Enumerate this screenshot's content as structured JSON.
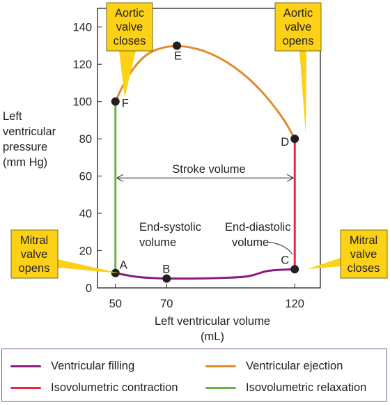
{
  "chart_data": {
    "type": "pressure-volume loop",
    "xlabel_line1": "Left ventricular volume",
    "xlabel_line2": "(mL)",
    "ylabel_lines": [
      "Left",
      "ventricular",
      "pressure",
      "(mm Hg)"
    ],
    "xlim": [
      43,
      130
    ],
    "ylim": [
      0,
      150
    ],
    "x_ticks": [
      50,
      70,
      120
    ],
    "y_ticks": [
      0,
      20,
      40,
      60,
      80,
      100,
      120,
      140
    ],
    "points": [
      {
        "label": "A",
        "x": 50,
        "y": 8
      },
      {
        "label": "B",
        "x": 70,
        "y": 5
      },
      {
        "label": "C",
        "x": 120,
        "y": 10
      },
      {
        "label": "D",
        "x": 120,
        "y": 80
      },
      {
        "label": "E",
        "x": 74,
        "y": 130
      },
      {
        "label": "F",
        "x": 50,
        "y": 100
      }
    ],
    "series": [
      {
        "name": "Ventricular filling",
        "color": "#8b1a7d",
        "x": [
          50,
          56,
          62,
          70,
          80,
          90,
          100,
          104,
          108,
          112,
          116,
          120
        ],
        "y": [
          8,
          6.3,
          5.4,
          5,
          5,
          5.2,
          5.8,
          6.8,
          8.8,
          9.6,
          9.8,
          10
        ]
      },
      {
        "name": "Isovolumetric contraction",
        "color": "#e8283e",
        "x": [
          120,
          120
        ],
        "y": [
          10,
          80
        ]
      },
      {
        "name": "Ventricular ejection",
        "color": "#e38a2a",
        "x": [
          120,
          116,
          110,
          104,
          98,
          92,
          86,
          80,
          74,
          68,
          62,
          57,
          53,
          50
        ],
        "y": [
          80,
          90,
          101,
          110,
          117,
          122.5,
          126.5,
          129,
          130,
          129,
          125.5,
          118,
          109,
          100
        ]
      },
      {
        "name": "Isovolumetric relaxation",
        "color": "#6ab445",
        "x": [
          50,
          50
        ],
        "y": [
          100,
          8
        ]
      }
    ],
    "annotations": {
      "stroke_volume": "Stroke volume",
      "stroke_volume_range": [
        50,
        120
      ],
      "end_systolic_line1": "End-systolic",
      "end_systolic_line2": "volume",
      "end_diastolic_line1": "End-diastolic",
      "end_diastolic_line2": "volume"
    },
    "callouts": [
      {
        "id": "aortic-valve-closes",
        "lines": [
          "Aortic",
          "valve",
          "closes"
        ]
      },
      {
        "id": "aortic-valve-opens",
        "lines": [
          "Aortic",
          "valve",
          "opens"
        ]
      },
      {
        "id": "mitral-valve-opens",
        "lines": [
          "Mitral",
          "valve",
          "opens"
        ]
      },
      {
        "id": "mitral-valve-closes",
        "lines": [
          "Mitral",
          "valve",
          "closes"
        ]
      }
    ],
    "colors": {
      "callout_fill": "#fcd116",
      "callout_stroke": "#7a6a12",
      "axis": "#231f20",
      "plot_bg": "#ffffff",
      "legend_border": "#7d5591"
    }
  },
  "legend": [
    {
      "label": "Ventricular filling",
      "color": "#8b1a7d"
    },
    {
      "label": "Ventricular ejection",
      "color": "#e38a2a"
    },
    {
      "label": "Isovolumetric contraction",
      "color": "#e8283e"
    },
    {
      "label": "Isovolumetric relaxation",
      "color": "#6ab445"
    }
  ]
}
